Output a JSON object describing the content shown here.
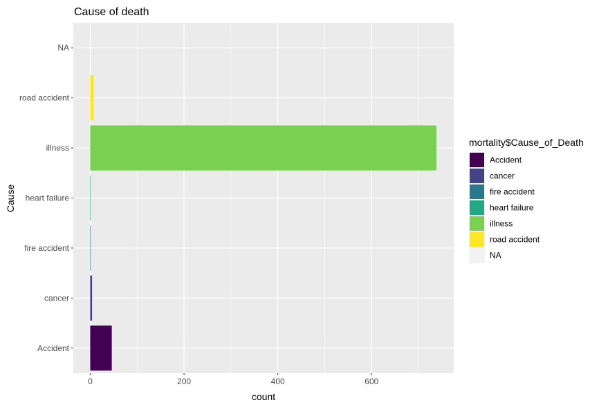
{
  "chart_data": {
    "type": "bar",
    "orientation": "horizontal",
    "title": "Cause of death",
    "xlabel": "count",
    "ylabel": "Cause",
    "categories": [
      "Accident",
      "cancer",
      "fire accident",
      "heart failure",
      "illness",
      "road accident",
      "NA"
    ],
    "values": [
      46,
      4,
      1,
      1,
      738,
      7,
      0
    ],
    "xlim": [
      -36,
      775
    ],
    "xticks": [
      0,
      200,
      400,
      600
    ],
    "grid": true,
    "legend": {
      "title": "mortality$Cause_of_Death",
      "placement": "right",
      "entries": [
        "Accident",
        "cancer",
        "fire accident",
        "heart failure",
        "illness",
        "road accident",
        "NA"
      ]
    },
    "colors": [
      "#440154",
      "#414487",
      "#2a788e",
      "#22a884",
      "#7ad151",
      "#fde725",
      "#f2f2f2"
    ],
    "panel_background": "#ebebeb"
  }
}
